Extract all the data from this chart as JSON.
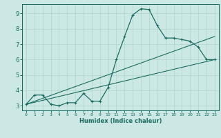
{
  "title": "",
  "xlabel": "Humidex (Indice chaleur)",
  "xlim": [
    -0.5,
    23.5
  ],
  "ylim": [
    2.7,
    9.6
  ],
  "yticks": [
    3,
    4,
    5,
    6,
    7,
    8,
    9
  ],
  "xticks": [
    0,
    1,
    2,
    3,
    4,
    5,
    6,
    7,
    8,
    9,
    10,
    11,
    12,
    13,
    14,
    15,
    16,
    17,
    18,
    19,
    20,
    21,
    22,
    23
  ],
  "background_color": "#cce8e4",
  "grid_color": "#afd4cf",
  "line_color": "#1a6b60",
  "line1_x": [
    0,
    1,
    2,
    3,
    4,
    5,
    6,
    7,
    8,
    9,
    10,
    11,
    12,
    13,
    14,
    15,
    16,
    17,
    18,
    19,
    20,
    21,
    22,
    23
  ],
  "line1_y": [
    3.1,
    3.7,
    3.7,
    3.1,
    3.0,
    3.2,
    3.2,
    3.8,
    3.3,
    3.3,
    4.2,
    6.0,
    7.5,
    8.9,
    9.3,
    9.25,
    8.2,
    7.4,
    7.4,
    7.3,
    7.2,
    6.8,
    6.0,
    6.0
  ],
  "line2_x": [
    0,
    23
  ],
  "line2_y": [
    3.1,
    7.5
  ],
  "line3_x": [
    0,
    23
  ],
  "line3_y": [
    3.1,
    6.0
  ]
}
